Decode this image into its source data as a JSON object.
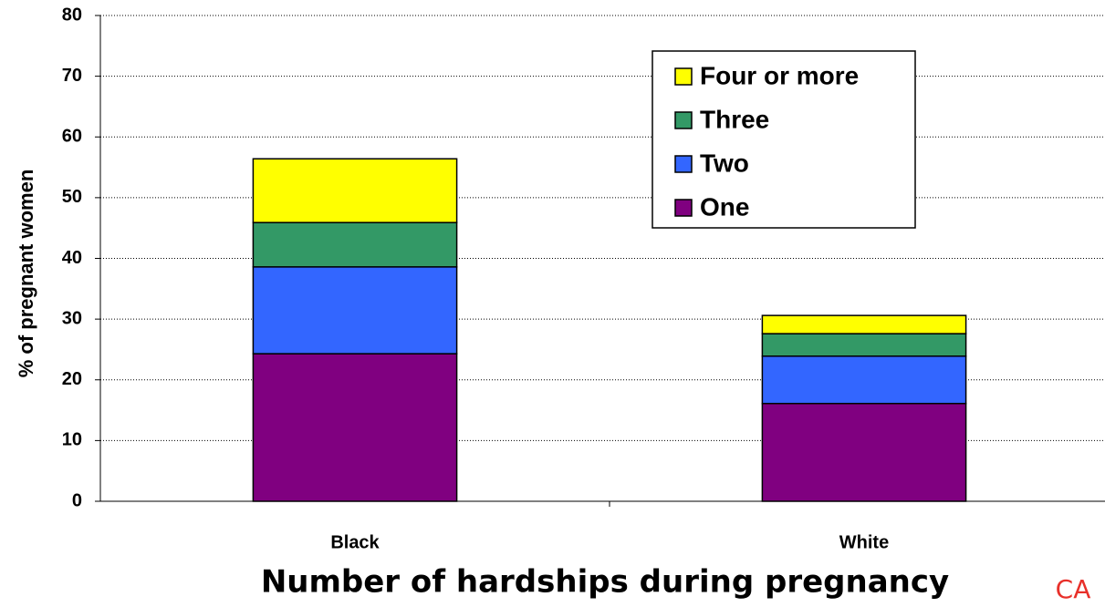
{
  "chart_data": {
    "type": "stacked_bar",
    "x_label": "Number of hardships during pregnancy",
    "y_label": "% of pregnant women",
    "annotation": "CA",
    "categories": [
      "Black",
      "White"
    ],
    "series": [
      {
        "name": "One",
        "color": "#800080",
        "values": [
          24.3,
          16.1
        ]
      },
      {
        "name": "Two",
        "color": "#3366ff",
        "values": [
          14.3,
          7.8
        ]
      },
      {
        "name": "Three",
        "color": "#339966",
        "values": [
          7.3,
          3.7
        ]
      },
      {
        "name": "Four or more",
        "color": "#ffff00",
        "values": [
          10.5,
          3.0
        ]
      }
    ],
    "ylim": [
      0,
      80
    ],
    "yticks": [
      0,
      10,
      20,
      30,
      40,
      50,
      60,
      70,
      80
    ],
    "grid": true,
    "legend": "upper right"
  }
}
